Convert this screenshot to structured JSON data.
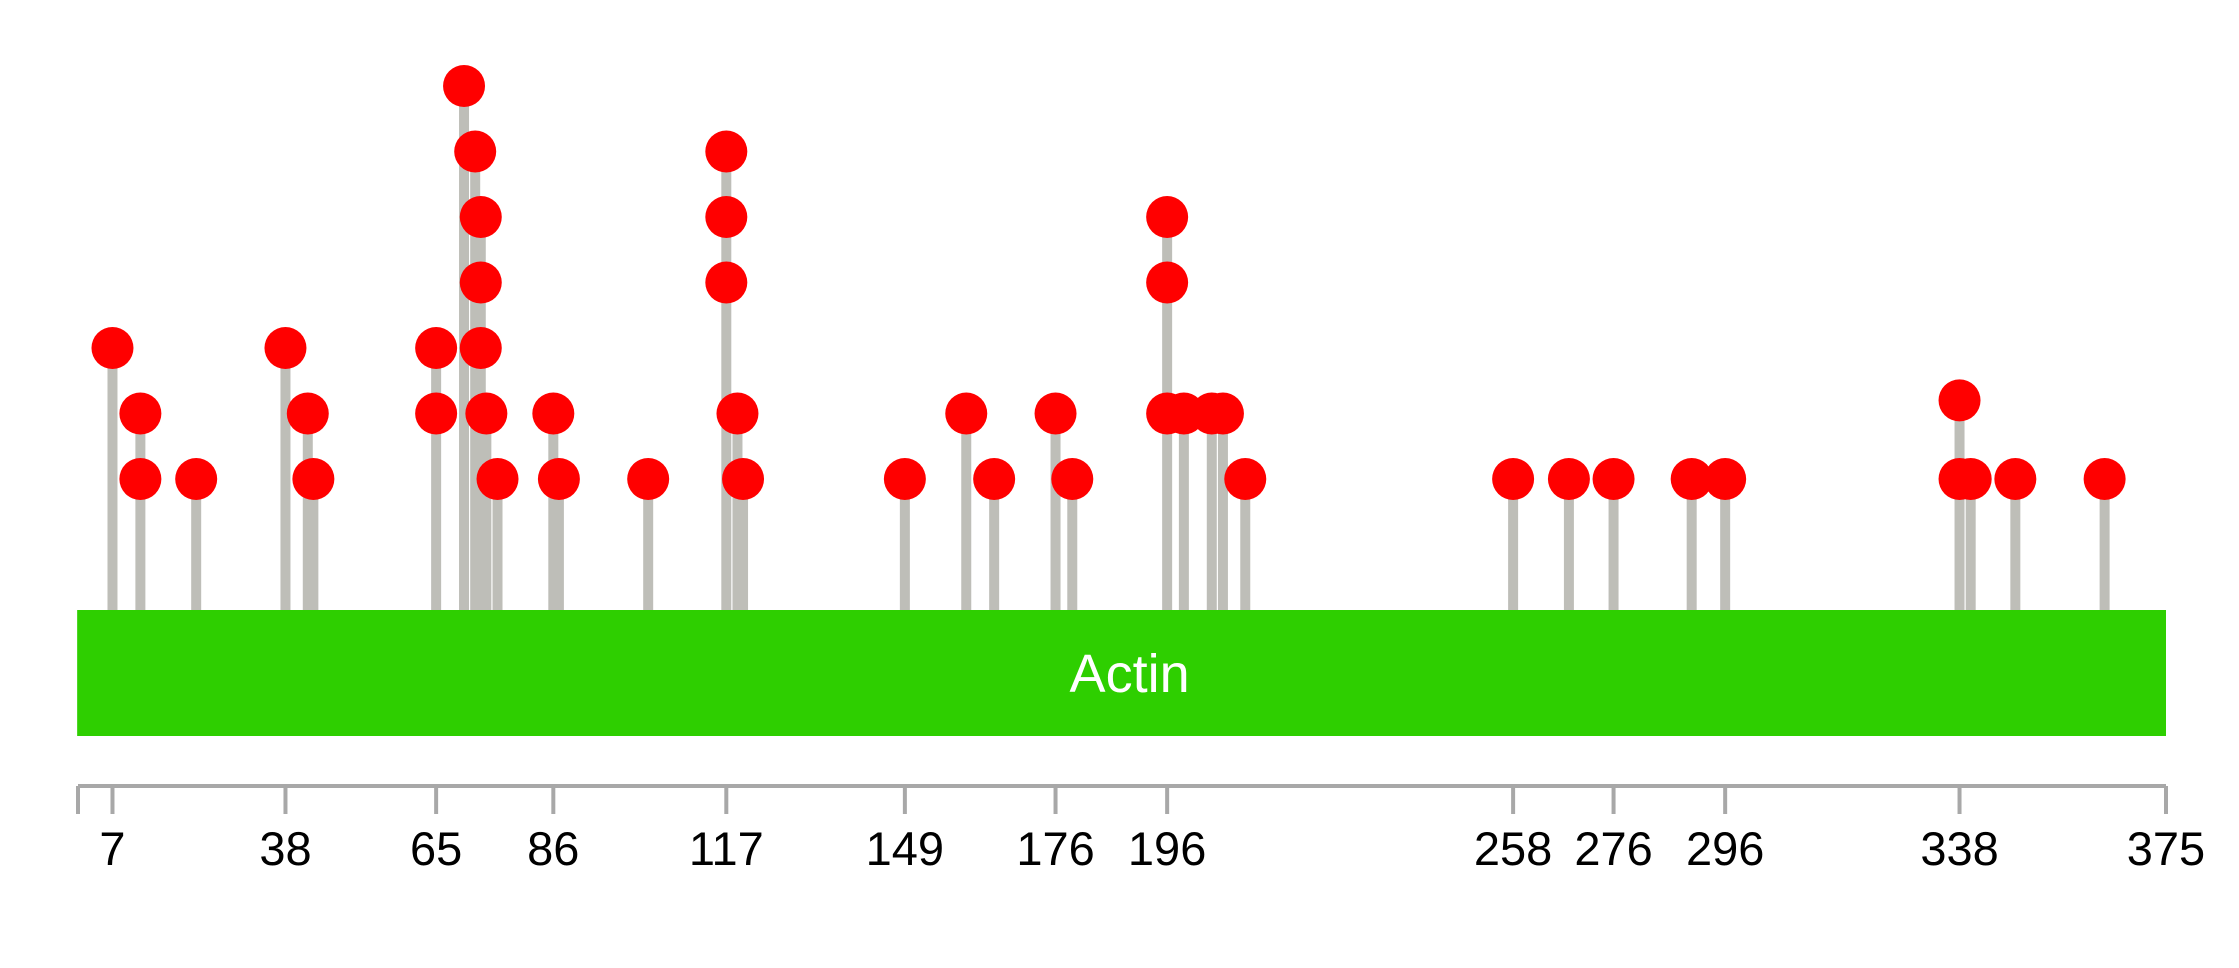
{
  "chart_data": {
    "type": "lollipop",
    "xlim": [
      1,
      375
    ],
    "protein_length": 375,
    "domain": {
      "name": "Actin",
      "start": 3,
      "end": 375,
      "color": "#2ecf00"
    },
    "axis_ticks": [
      7,
      38,
      65,
      86,
      117,
      149,
      176,
      196,
      258,
      276,
      296,
      338,
      375
    ],
    "backbone_color": "#c0c0bc",
    "stem_color": "#bebeb8",
    "marker_color": "#ff0000",
    "mutations": [
      {
        "position": 7,
        "count": 4
      },
      {
        "position": 12,
        "count": 2
      },
      {
        "position": 12,
        "count": 3
      },
      {
        "position": 22,
        "count": 2
      },
      {
        "position": 38,
        "count": 4
      },
      {
        "position": 42,
        "count": 3
      },
      {
        "position": 43,
        "count": 2
      },
      {
        "position": 65,
        "count": 3
      },
      {
        "position": 65,
        "count": 4
      },
      {
        "position": 70,
        "count": 8
      },
      {
        "position": 72,
        "count": 7
      },
      {
        "position": 73,
        "count": 6
      },
      {
        "position": 73,
        "count": 5
      },
      {
        "position": 73,
        "count": 4
      },
      {
        "position": 74,
        "count": 3
      },
      {
        "position": 76,
        "count": 2
      },
      {
        "position": 86,
        "count": 3
      },
      {
        "position": 87,
        "count": 2
      },
      {
        "position": 103,
        "count": 2
      },
      {
        "position": 117,
        "count": 7
      },
      {
        "position": 117,
        "count": 6
      },
      {
        "position": 117,
        "count": 5
      },
      {
        "position": 119,
        "count": 3
      },
      {
        "position": 120,
        "count": 2
      },
      {
        "position": 149,
        "count": 2
      },
      {
        "position": 160,
        "count": 3
      },
      {
        "position": 165,
        "count": 2
      },
      {
        "position": 176,
        "count": 3
      },
      {
        "position": 179,
        "count": 2
      },
      {
        "position": 196,
        "count": 6
      },
      {
        "position": 196,
        "count": 5
      },
      {
        "position": 196,
        "count": 3
      },
      {
        "position": 199,
        "count": 3
      },
      {
        "position": 204,
        "count": 3
      },
      {
        "position": 206,
        "count": 3
      },
      {
        "position": 210,
        "count": 2
      },
      {
        "position": 258,
        "count": 2
      },
      {
        "position": 268,
        "count": 2
      },
      {
        "position": 276,
        "count": 2
      },
      {
        "position": 290,
        "count": 2
      },
      {
        "position": 296,
        "count": 2
      },
      {
        "position": 338,
        "count": 3.2
      },
      {
        "position": 338,
        "count": 2
      },
      {
        "position": 340,
        "count": 2
      },
      {
        "position": 348,
        "count": 2
      },
      {
        "position": 364,
        "count": 2
      }
    ],
    "y_scale": {
      "min": 0,
      "max": 8
    }
  }
}
